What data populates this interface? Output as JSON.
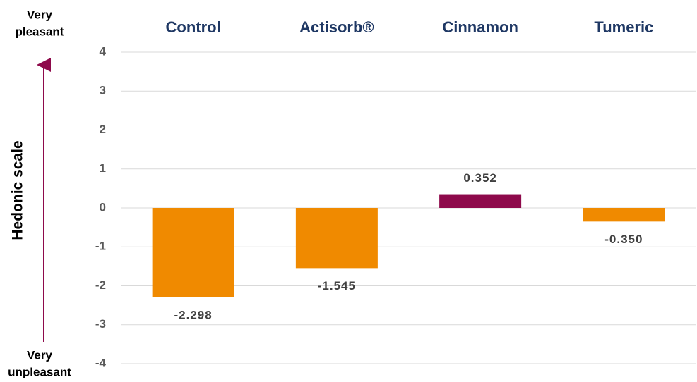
{
  "chart_data": {
    "type": "bar",
    "categories": [
      "Control",
      "Actisorb®",
      "Cinnamon",
      "Tumeric"
    ],
    "values": [
      -2.298,
      -1.545,
      0.352,
      -0.35
    ],
    "value_labels": [
      "-2.298",
      "-1.545",
      "0.352",
      "-0.350"
    ],
    "colors": [
      "#f08a00",
      "#f08a00",
      "#8e0a4b",
      "#f08a00"
    ],
    "y_label": "Hedonic scale",
    "top_annotation": [
      "Very",
      "pleasant"
    ],
    "bottom_annotation": [
      "Very",
      "unpleasant"
    ],
    "ylim": [
      -4,
      4
    ],
    "yticks": [
      -4,
      -3,
      -2,
      -1,
      0,
      1,
      2,
      3,
      4
    ],
    "grid": true
  }
}
